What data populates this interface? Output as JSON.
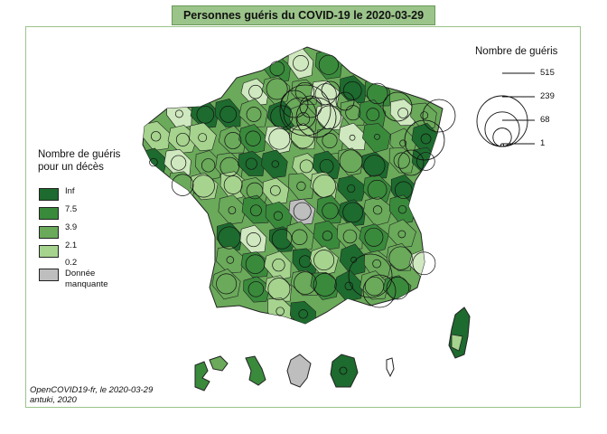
{
  "title": "Personnes guéris du COVID-19 le 2020-03-29",
  "colors": {
    "inf": "#1d6b2e",
    "c75": "#3a8a3c",
    "c39": "#6aaa5a",
    "c21": "#a6d38e",
    "c02": "#cfe8bf",
    "missing": "#bebebe",
    "frame": "#9bc48a"
  },
  "choropleth_legend": {
    "title_line1": "Nombre de guéris",
    "title_line2": "pour un décès",
    "breaks": [
      "Inf",
      "7.5",
      "3.9",
      "2.1",
      "0.2"
    ],
    "missing_line1": "Donnée",
    "missing_line2": "manquante"
  },
  "circle_legend": {
    "title": "Nombre de guéris",
    "values": [
      515,
      239,
      68,
      1
    ],
    "labels": [
      "515",
      "239",
      "68",
      "1"
    ]
  },
  "source": {
    "line1": "OpenCOVID19-fr, le 2020-03-29",
    "line2": "antuki, 2020"
  }
}
